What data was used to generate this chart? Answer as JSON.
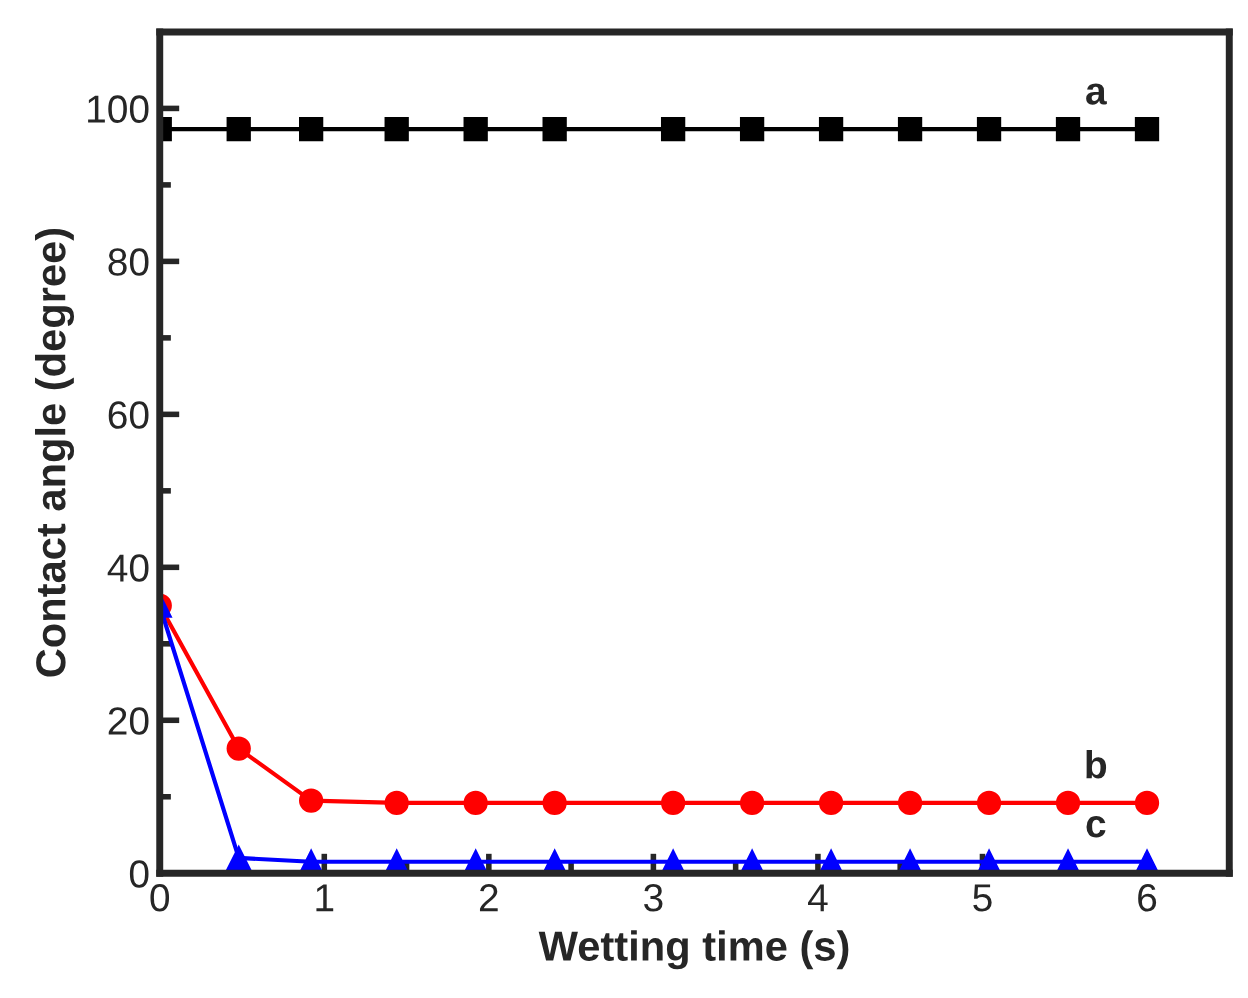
{
  "chart_data": {
    "type": "line",
    "xlabel": "Wetting time (s)",
    "ylabel": "Contact angle (degree)",
    "x": [
      0,
      0.48,
      0.92,
      1.44,
      1.92,
      2.4,
      3.12,
      3.6,
      4.08,
      4.56,
      5.04,
      5.52,
      6.0
    ],
    "series": [
      {
        "name": "a",
        "color": "#000000",
        "marker": "square",
        "values": [
          97.3,
          97.3,
          97.3,
          97.3,
          97.3,
          97.3,
          97.3,
          97.3,
          97.3,
          97.3,
          97.3,
          97.3,
          97.3
        ]
      },
      {
        "name": "b",
        "color": "#ff0000",
        "marker": "circle",
        "values": [
          35,
          16.3,
          9.5,
          9.2,
          9.2,
          9.2,
          9.2,
          9.2,
          9.2,
          9.2,
          9.2,
          9.2,
          9.2
        ]
      },
      {
        "name": "c",
        "color": "#0000ff",
        "marker": "triangle",
        "values": [
          35,
          2.0,
          1.5,
          1.5,
          1.5,
          1.5,
          1.5,
          1.5,
          1.5,
          1.5,
          1.5,
          1.5,
          1.5
        ]
      }
    ],
    "xlim": [
      0,
      6.5
    ],
    "ylim": [
      0,
      110
    ],
    "xticks": [
      0,
      1,
      2,
      3,
      4,
      5,
      6
    ],
    "yticks": [
      0,
      20,
      40,
      60,
      80,
      100
    ],
    "grid": false,
    "legend": false
  }
}
